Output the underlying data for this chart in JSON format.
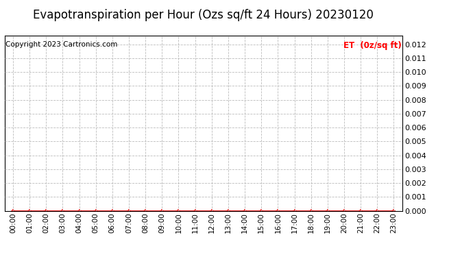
{
  "title": "Evapotranspiration per Hour (Ozs sq/ft 24 Hours) 20230120",
  "copyright_text": "Copyright 2023 Cartronics.com",
  "legend_label": "ET  (0z/sq ft)",
  "legend_color": "#ff0000",
  "copyright_color": "#000000",
  "background_color": "#ffffff",
  "grid_color": "#bbbbbb",
  "line_color": "#ff0000",
  "marker_color": "#ff0000",
  "ylim": [
    0.0,
    0.0126
  ],
  "yticks": [
    0.0,
    0.001,
    0.002,
    0.003,
    0.004,
    0.005,
    0.006,
    0.007,
    0.008,
    0.009,
    0.01,
    0.011,
    0.012
  ],
  "hours": [
    "00:00",
    "01:00",
    "02:00",
    "03:00",
    "04:00",
    "05:00",
    "06:00",
    "07:00",
    "08:00",
    "09:00",
    "10:00",
    "11:00",
    "12:00",
    "13:00",
    "14:00",
    "15:00",
    "16:00",
    "17:00",
    "18:00",
    "19:00",
    "20:00",
    "21:00",
    "22:00",
    "23:00"
  ],
  "et_values": [
    0.0,
    0.0,
    0.0,
    0.0,
    0.0,
    0.0,
    0.0,
    0.0,
    0.0,
    0.0,
    0.0,
    0.0,
    0.0,
    0.0,
    0.0,
    0.0,
    0.0,
    0.0,
    0.0,
    0.0,
    0.0,
    0.0,
    0.0,
    0.0
  ],
  "title_fontsize": 12,
  "tick_fontsize": 7.5,
  "copyright_fontsize": 7.5,
  "legend_fontsize": 8.5,
  "ytick_fontsize": 8
}
